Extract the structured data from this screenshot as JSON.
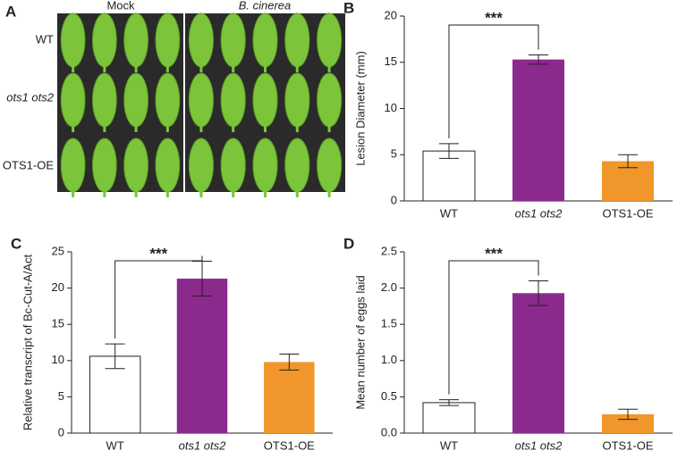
{
  "photo_panel": {
    "label": "A",
    "columns": [
      "Mock",
      "B. cinerea"
    ],
    "rows": [
      "WT",
      "ots1 ots2",
      "OTS1-OE"
    ]
  },
  "chart_data": [
    {
      "type": "bar",
      "panel_label": "B",
      "ylabel": "Lesion Diameter (mm)",
      "categories": [
        "WT",
        "ots1 ots2",
        "OTS1-OE"
      ],
      "values": [
        5.4,
        15.3,
        4.3
      ],
      "errors": [
        0.8,
        0.5,
        0.7
      ],
      "colors": [
        "#ffffff",
        "#8b2a8c",
        "#f0962a"
      ],
      "significance": "***",
      "ylim": [
        0,
        20
      ],
      "yticks": [
        0,
        5,
        10,
        15,
        20
      ]
    },
    {
      "type": "bar",
      "panel_label": "C",
      "ylabel": "Relative transcript of Bc-Cut-A/Act",
      "categories": [
        "WT",
        "ots1 ots2",
        "OTS1-OE"
      ],
      "values": [
        10.6,
        21.3,
        9.8
      ],
      "errors": [
        1.7,
        2.4,
        1.1
      ],
      "colors": [
        "#ffffff",
        "#8b2a8c",
        "#f0962a"
      ],
      "significance": "***",
      "ylim": [
        0,
        25
      ],
      "yticks": [
        0,
        5,
        10,
        15,
        20,
        25
      ]
    },
    {
      "type": "bar",
      "panel_label": "D",
      "ylabel": "Mean number of eggs laid",
      "categories": [
        "WT",
        "ots1 ots2",
        "OTS1-OE"
      ],
      "values": [
        0.42,
        1.93,
        0.26
      ],
      "errors": [
        0.04,
        0.17,
        0.07
      ],
      "colors": [
        "#ffffff",
        "#8b2a8c",
        "#f0962a"
      ],
      "significance": "***",
      "ylim": [
        0,
        2.5
      ],
      "yticks": [
        {
          "value": 0,
          "label": "0.0"
        },
        0.5,
        {
          "value": 1,
          "label": "1.0"
        },
        1.5,
        {
          "value": 2,
          "label": "2.0"
        },
        2.5
      ]
    }
  ]
}
